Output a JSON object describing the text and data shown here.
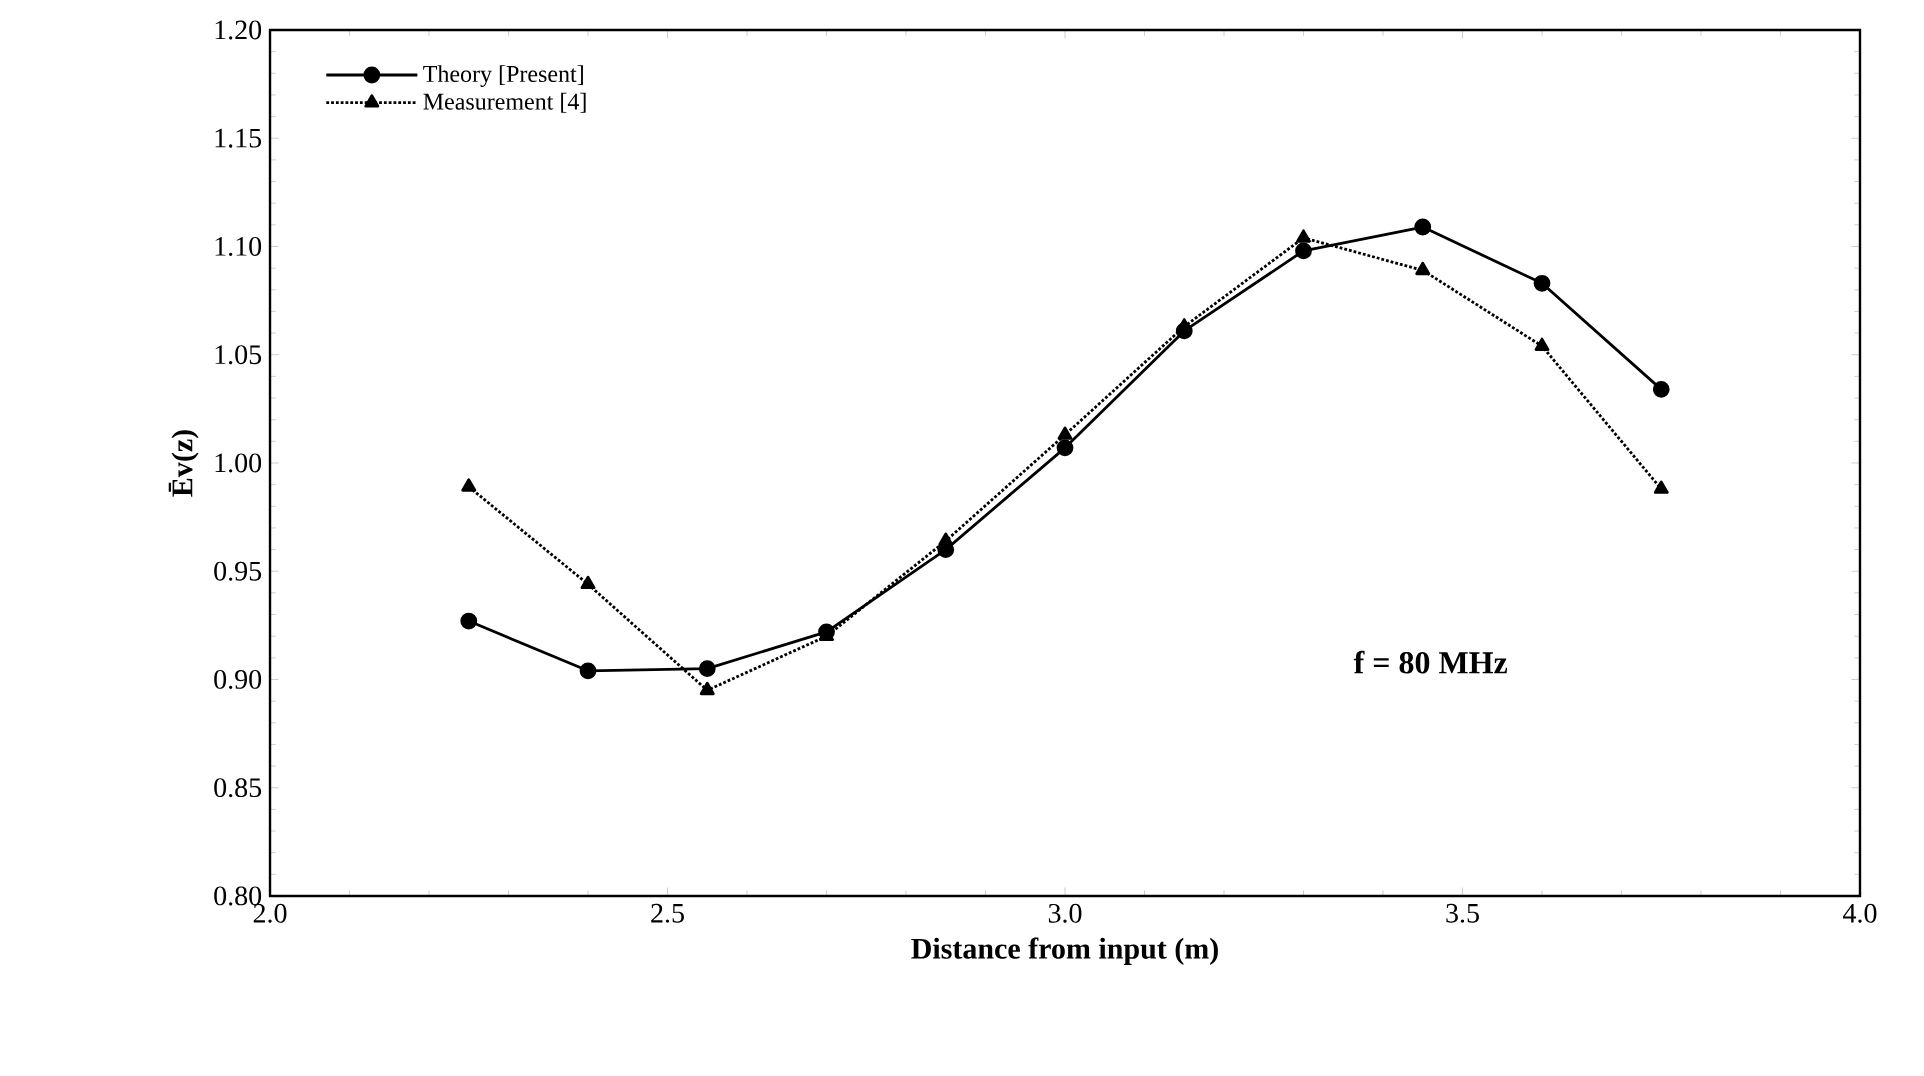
{
  "chart_data": {
    "type": "line",
    "xlabel": "Distance from input (m)",
    "ylabel": "Ēv(z)",
    "annotations": [
      "f = 80 MHz"
    ],
    "x": [
      2.25,
      2.4,
      2.55,
      2.7,
      2.85,
      3.0,
      3.15,
      3.3,
      3.45,
      3.6,
      3.75
    ],
    "series": [
      {
        "name": "Theory [Present]",
        "color": "#000000",
        "marker": "circle",
        "line_style": "solid",
        "values": [
          0.927,
          0.904,
          0.905,
          0.922,
          0.96,
          1.007,
          1.061,
          1.098,
          1.109,
          1.083,
          1.034
        ]
      },
      {
        "name": "Measurement [4]",
        "color": "#000000",
        "marker": "triangle",
        "line_style": "dotted",
        "values": [
          0.989,
          0.944,
          0.895,
          0.92,
          0.964,
          1.013,
          1.063,
          1.104,
          1.089,
          1.054,
          0.988
        ]
      }
    ],
    "xlim": [
      2.0,
      4.0
    ],
    "ylim": [
      0.8,
      1.2
    ],
    "xticks": [
      {
        "value": 2.0,
        "label": "2.0"
      },
      2.5,
      {
        "value": 3.0,
        "label": "3.0"
      },
      3.5,
      {
        "value": 4.0,
        "label": "4.0"
      }
    ],
    "yticks": [
      {
        "value": 0.8,
        "label": "0.80"
      },
      0.85,
      {
        "value": 0.9,
        "label": "0.90"
      },
      0.95,
      {
        "value": 1.0,
        "label": "1.00"
      },
      1.05,
      {
        "value": 1.1,
        "label": "1.10"
      },
      1.15,
      {
        "value": 1.2,
        "label": "1.20"
      }
    ],
    "legend": "top left",
    "grid": false
  }
}
